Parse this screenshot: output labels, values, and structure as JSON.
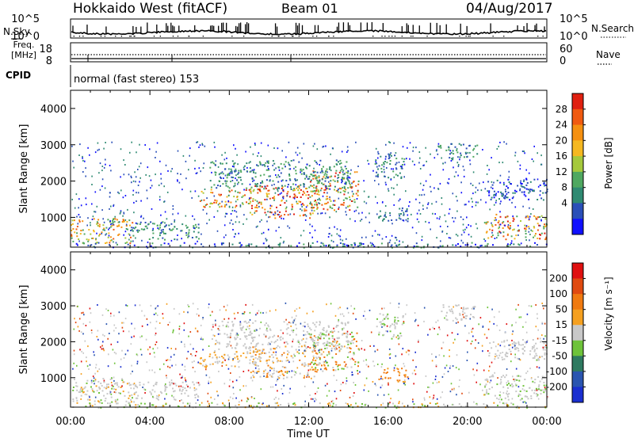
{
  "header": {
    "radar": "Hokkaido West (fitACF)",
    "beam": "Beam 01",
    "date": "04/Aug/2017"
  },
  "top_panels": {
    "nsky_label": "N.Sky",
    "nsky_ticks": [
      "10^5",
      "10^0"
    ],
    "nsearch_label": "N.Search",
    "nsearch_ticks": [
      "10^5",
      "10^0"
    ],
    "freq_label_1": "Freq.",
    "freq_label_2": "[MHz]",
    "freq_ticks": [
      "18",
      "8"
    ],
    "nave_label": "Nave",
    "nave_ticks": [
      "60",
      "0"
    ],
    "cpid_label": "CPID",
    "cpid_text": "normal (fast stereo) 153"
  },
  "colors": {
    "power_scale": [
      "#1010ff",
      "#2a4fb8",
      "#2f8a72",
      "#4fa860",
      "#a5c93c",
      "#f5b820",
      "#f59010",
      "#f05a10",
      "#e02010"
    ],
    "velocity_scale": [
      "#1a2fd0",
      "#2a55b0",
      "#2e7a60",
      "#6ec33a",
      "#c8c8c8",
      "#f5a020",
      "#f07a10",
      "#e04a10",
      "#e01010"
    ]
  },
  "chart_data": [
    {
      "type": "heatmap",
      "name": "Power",
      "ylabel": "Slant Range [km]",
      "yticks": [
        "4000",
        "3000",
        "2000",
        "1000"
      ],
      "xticks": [
        "00:00",
        "04:00",
        "08:00",
        "12:00",
        "16:00",
        "20:00",
        "00:00"
      ],
      "colorbar_label": "Power [dB]",
      "colorbar_ticks": [
        "28",
        "24",
        "20",
        "16",
        "12",
        "8",
        "4"
      ],
      "ylim": [
        180,
        4500
      ],
      "xlim_hours": [
        0,
        24
      ]
    },
    {
      "type": "heatmap",
      "name": "Velocity",
      "ylabel": "Slant Range [km]",
      "yticks": [
        "4000",
        "3000",
        "2000",
        "1000"
      ],
      "xticks": [
        "00:00",
        "04:00",
        "08:00",
        "12:00",
        "16:00",
        "20:00",
        "00:00"
      ],
      "xlabel": "Time UT",
      "colorbar_label": "Velocity [m s⁻¹]",
      "colorbar_ticks": [
        "200",
        "100",
        "50",
        "15",
        "-15",
        "-50",
        "-100",
        "-200"
      ],
      "ylim": [
        180,
        4500
      ],
      "xlim_hours": [
        0,
        24
      ]
    }
  ]
}
